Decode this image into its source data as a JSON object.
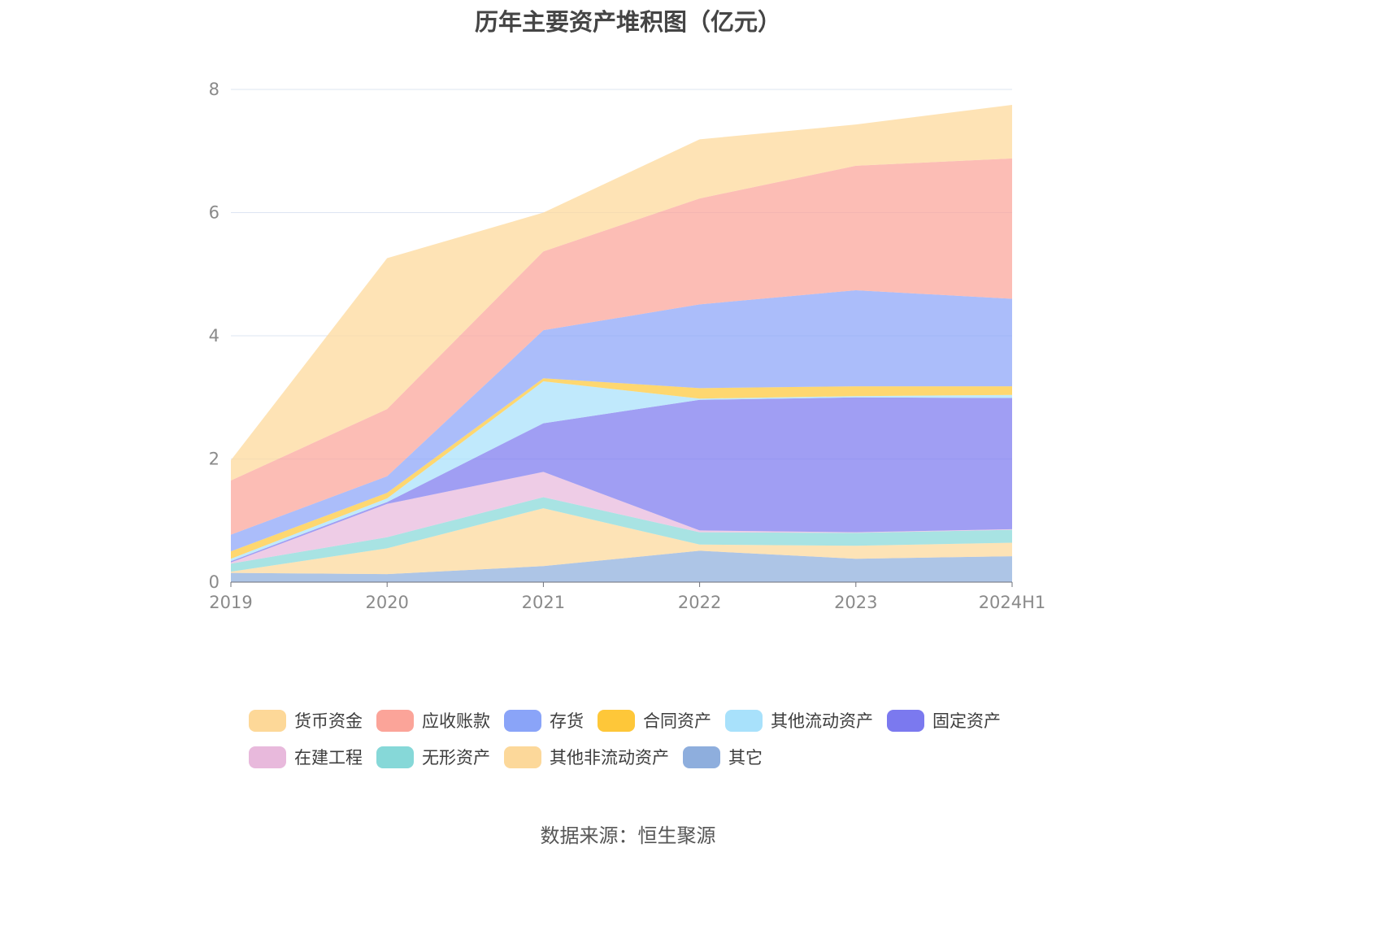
{
  "title": "历年主要资产堆积图（亿元）",
  "source": "数据来源：恒生聚源",
  "chart_data": {
    "type": "area",
    "stacked": true,
    "x": [
      "2019",
      "2020",
      "2021",
      "2022",
      "2023",
      "2024H1"
    ],
    "ylim": [
      0,
      8
    ],
    "yticks": [
      0,
      2,
      4,
      6,
      8
    ],
    "grid": true,
    "legend_position": "bottom",
    "series": [
      {
        "name": "其它",
        "color": "#8eaedd",
        "values": [
          0.15,
          0.13,
          0.26,
          0.51,
          0.38,
          0.42
        ]
      },
      {
        "name": "其他非流动资产",
        "color": "#fcd89a",
        "values": [
          0.02,
          0.42,
          0.94,
          0.1,
          0.21,
          0.22
        ]
      },
      {
        "name": "无形资产",
        "color": "#86d8d8",
        "values": [
          0.13,
          0.18,
          0.18,
          0.2,
          0.21,
          0.21
        ]
      },
      {
        "name": "在建工程",
        "color": "#e8b9dc",
        "values": [
          0.02,
          0.54,
          0.41,
          0.03,
          0.01,
          0.01
        ]
      },
      {
        "name": "固定资产",
        "color": "#7b79ef",
        "values": [
          0.02,
          0.03,
          0.79,
          2.12,
          2.19,
          2.13
        ]
      },
      {
        "name": "其他流动资产",
        "color": "#a8e1fb",
        "values": [
          0.04,
          0.06,
          0.68,
          0.02,
          0.02,
          0.05
        ]
      },
      {
        "name": "合同资产",
        "color": "#fec739",
        "values": [
          0.12,
          0.09,
          0.05,
          0.17,
          0.16,
          0.14
        ]
      },
      {
        "name": "存货",
        "color": "#8aa4f8",
        "values": [
          0.27,
          0.27,
          0.78,
          1.36,
          1.56,
          1.42
        ]
      },
      {
        "name": "应收账款",
        "color": "#fba499",
        "values": [
          0.88,
          1.09,
          1.28,
          1.72,
          2.02,
          2.28
        ]
      },
      {
        "name": "货币资金",
        "color": "#fdd898",
        "values": [
          0.33,
          2.45,
          0.63,
          0.96,
          0.67,
          0.87
        ]
      }
    ]
  },
  "legend_rows": [
    [
      {
        "label": "货币资金",
        "color": "#fdd898"
      },
      {
        "label": "应收账款",
        "color": "#fba499"
      },
      {
        "label": "存货",
        "color": "#8aa4f8"
      },
      {
        "label": "合同资产",
        "color": "#fec739"
      },
      {
        "label": "其他流动资产",
        "color": "#a8e1fb"
      },
      {
        "label": "固定资产",
        "color": "#7b79ef"
      }
    ],
    [
      {
        "label": "在建工程",
        "color": "#e8b9dc"
      },
      {
        "label": "无形资产",
        "color": "#86d8d8"
      },
      {
        "label": "其他非流动资产",
        "color": "#fcd89a"
      },
      {
        "label": "其它",
        "color": "#8eaedd"
      }
    ]
  ]
}
